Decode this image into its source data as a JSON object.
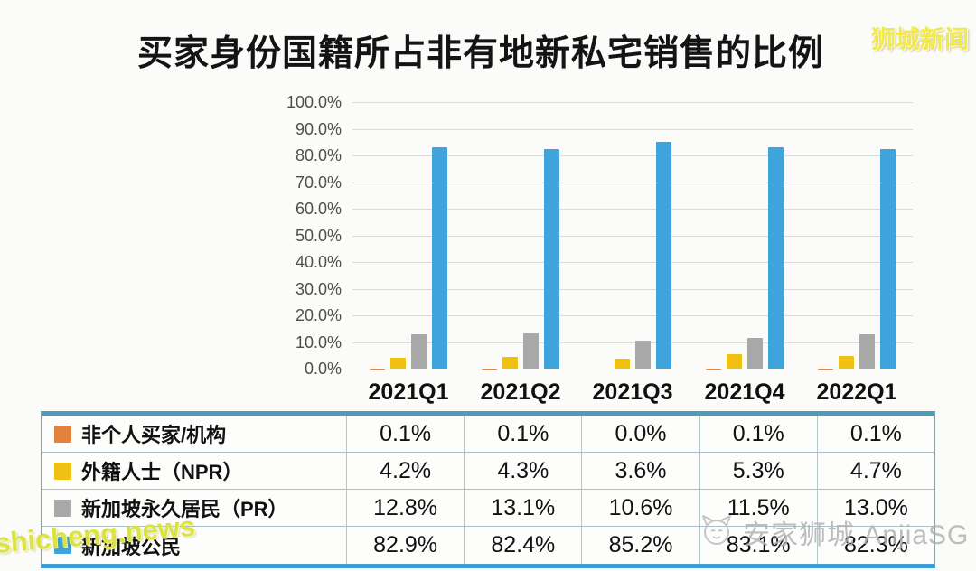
{
  "page": {
    "title": "买家身份国籍所占非有地新私宅销售的比例",
    "watermark_top_right": "狮城新闻",
    "watermark_bottom_left": "shicheng.news",
    "watermark_bottom_right": "安家狮城 AnjiaSG"
  },
  "colors": {
    "orange": "#e2823d",
    "gold": "#f0c013",
    "gray": "#a8a8a8",
    "blue": "#3fa3dc",
    "grid": "#dbdbdb",
    "table_top_border": "#4c9db5",
    "table_bottom_border": "#3f9fd9"
  },
  "chart_data": {
    "type": "bar",
    "title": "买家身份国籍所占非有地新私宅销售的比例",
    "categories": [
      "2021Q1",
      "2021Q2",
      "2021Q3",
      "2021Q4",
      "2022Q1"
    ],
    "series": [
      {
        "name": "非个人买家/机构",
        "color": "#e2823d",
        "values": [
          0.1,
          0.1,
          0.0,
          0.1,
          0.1
        ]
      },
      {
        "name": "外籍人士（NPR）",
        "color": "#f0c013",
        "values": [
          4.2,
          4.3,
          3.6,
          5.3,
          4.7
        ]
      },
      {
        "name": "新加坡永久居民（PR）",
        "color": "#a8a8a8",
        "values": [
          12.8,
          13.1,
          10.6,
          11.5,
          13.0
        ]
      },
      {
        "name": "新加坡公民",
        "color": "#3fa3dc",
        "values": [
          82.9,
          82.4,
          85.2,
          83.1,
          82.3
        ]
      }
    ],
    "xlabel": "",
    "ylabel": "",
    "ylim": [
      0,
      100
    ],
    "ytick_labels": [
      "100.0%",
      "90.0%",
      "80.0%",
      "70.0%",
      "60.0%",
      "50.0%",
      "40.0%",
      "30.0%",
      "20.0%",
      "10.0%",
      "0.0%"
    ],
    "grid": true,
    "legend_position": "table-below-chart"
  },
  "table": {
    "rows": [
      {
        "label": "非个人买家/机构",
        "swatch": "#e2823d",
        "values": [
          "0.1%",
          "0.1%",
          "0.0%",
          "0.1%",
          "0.1%"
        ]
      },
      {
        "label": "外籍人士（NPR）",
        "swatch": "#f0c013",
        "values": [
          "4.2%",
          "4.3%",
          "3.6%",
          "5.3%",
          "4.7%"
        ]
      },
      {
        "label": "新加坡永久居民（PR）",
        "swatch": "#a8a8a8",
        "values": [
          "12.8%",
          "13.1%",
          "10.6%",
          "11.5%",
          "13.0%"
        ]
      },
      {
        "label": "新加坡公民",
        "swatch": "#3fa3dc",
        "values": [
          "82.9%",
          "82.4%",
          "85.2%",
          "83.1%",
          "82.3%"
        ]
      }
    ]
  }
}
